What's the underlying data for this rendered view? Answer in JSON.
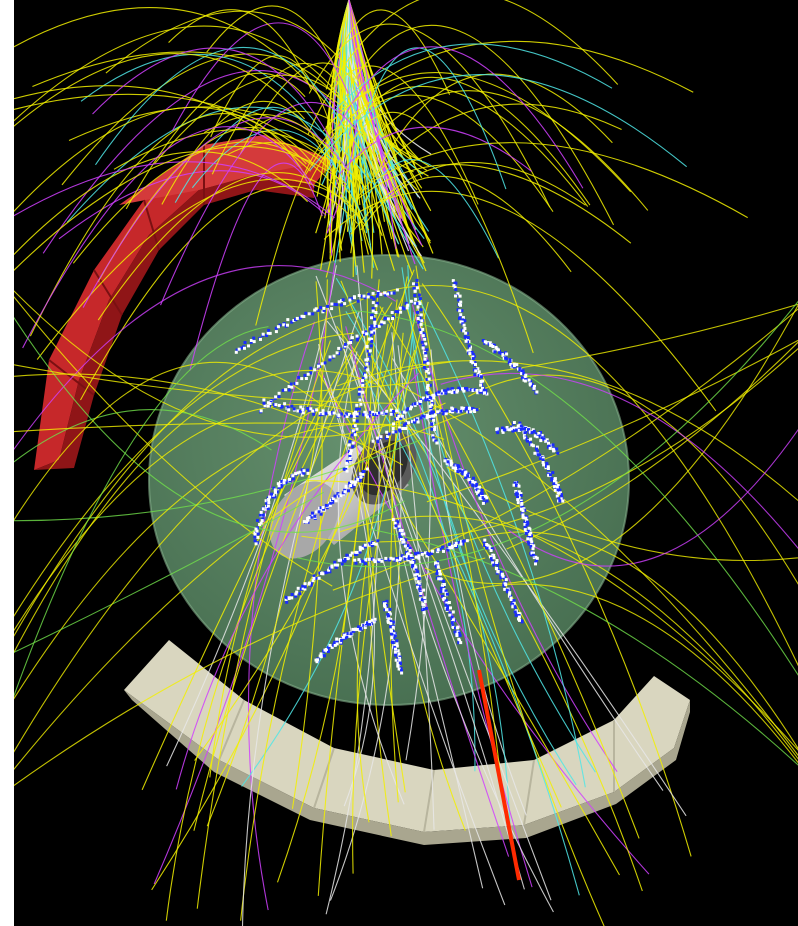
{
  "scene": {
    "description_icon": "particle-event-display",
    "background": "#000000",
    "frame_color": "#ffffff",
    "colors": {
      "barrel": "#5f8f68",
      "barrel_edge": "#86b08c",
      "red_calorimeter": "#c6282a",
      "red_calorimeter_dark": "#8f1517",
      "beige_calorimeter": "#d9d6bf",
      "beige_calorimeter_dark": "#a9a68f",
      "beam_pipe": "#cfcfcf",
      "hits": "#1a2bff",
      "track_yellow": "#f2f000",
      "track_cyan": "#4fe6e6",
      "track_magenta": "#d040ff",
      "track_white": "#e8e8e8",
      "track_green": "#70e04a",
      "track_red": "#ff2a00"
    }
  }
}
